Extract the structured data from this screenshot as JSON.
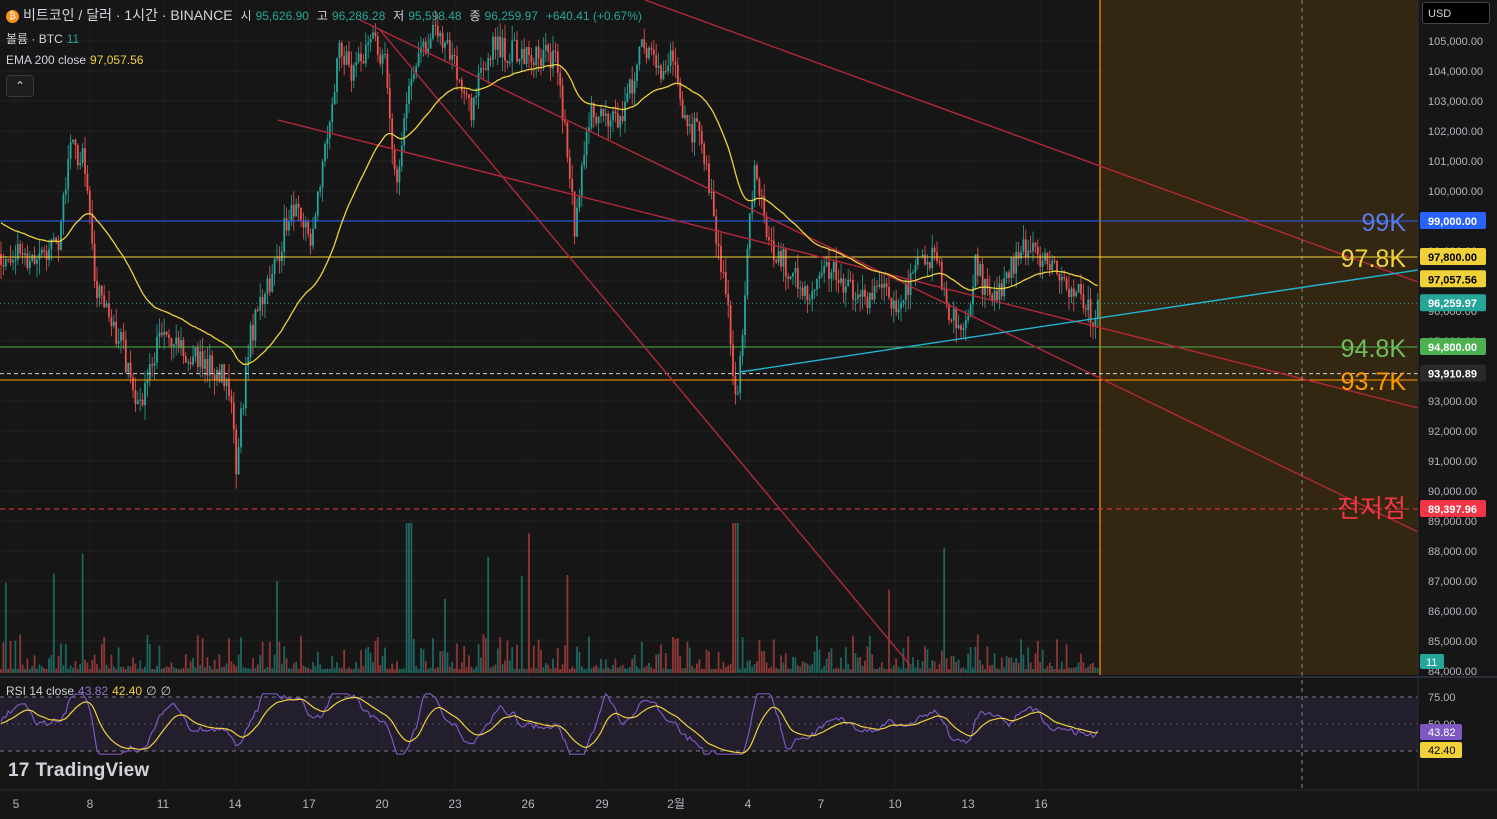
{
  "header": {
    "symbol": "비트코인 / 달러 · 1시간 · BINANCE",
    "open_label": "시",
    "open": "95,626.90",
    "high_label": "고",
    "high": "96,286.28",
    "low_label": "저",
    "low": "95,598.48",
    "close_label": "종",
    "close": "96,259.97",
    "change": "+640.41 (+0.67%)"
  },
  "volume_legend": {
    "label": "볼륨 · BTC",
    "value": "11"
  },
  "ema_legend": {
    "label": "EMA 200 close",
    "value": "97,057.56"
  },
  "rsi_legend": {
    "label": "RSI 14 close",
    "rsi": "43.82",
    "ma": "42.40",
    "x1": "∅",
    "x2": "∅"
  },
  "currency": "USD",
  "brand": "TradingView",
  "collapse_icon": "chevron-up-icon",
  "price_axis": {
    "ticks": [
      "105,000.00",
      "104,000.00",
      "103,000.00",
      "102,000.00",
      "101,000.00",
      "100,000.00",
      "99,000.00",
      "98,000.00",
      "97,000.00",
      "96,000.00",
      "95,000.00",
      "94,000.00",
      "93,000.00",
      "92,000.00",
      "91,000.00",
      "90,000.00",
      "89,000.00",
      "88,000.00",
      "87,000.00",
      "86,000.00",
      "85,000.00",
      "84,000.00"
    ],
    "badges": {
      "line99": "99,000.00",
      "line978": "97,800.00",
      "ema": "97,057.56",
      "last": "96,259.97",
      "line948": "94,800.00",
      "line939": "93,910.89",
      "prevlow": "89,397.96",
      "vol": "11"
    }
  },
  "rsi_axis": {
    "ticks": [
      "75.00",
      "50.00",
      "25.00"
    ],
    "rsi_badge": "43.82",
    "ma_badge": "42.40"
  },
  "annotations": {
    "k99": "99K",
    "k978": "97.8K",
    "k948": "94.8K",
    "k937": "93.7K",
    "prev_low": "전저점"
  },
  "time_axis": [
    "5",
    "8",
    "11",
    "14",
    "17",
    "20",
    "23",
    "26",
    "29",
    "2월",
    "4",
    "7",
    "10",
    "13",
    "16"
  ],
  "colors": {
    "up": "#26a69a",
    "down": "#ef5350",
    "ema": "#f0d13a",
    "blue_line": "#2962ff",
    "yellow_line": "#f0d13a",
    "green_line": "#4caf50",
    "orange_line": "#ff9800",
    "red_dashed": "#f23645",
    "channel": "#b2283a",
    "trend_teal": "#22b5d0",
    "rsi": "#7e57c2",
    "rsi_ma": "#f0d13a",
    "future_zone": "#3a2a12"
  }
}
